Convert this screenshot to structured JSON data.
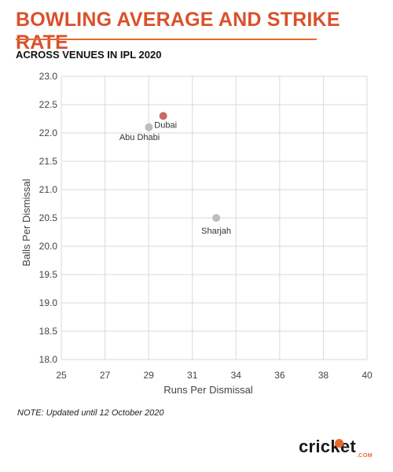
{
  "header": {
    "title": "BOWLING AVERAGE AND STRIKE RATE",
    "subtitle": "ACROSS VENUES IN IPL 2020"
  },
  "footer": {
    "note": "NOTE: Updated until 12 October 2020",
    "logo_text": "cricket",
    "logo_subtext": ".COM"
  },
  "colors": {
    "accent": "#d9512c",
    "highlight_point": "#c96a64",
    "default_point": "#bdbdbd",
    "grid": "#d9d9d9"
  },
  "chart_data": {
    "type": "scatter",
    "title": "BOWLING AVERAGE AND STRIKE RATE",
    "subtitle": "ACROSS VENUES IN IPL 2020",
    "xlabel": "Runs Per Dismissal",
    "ylabel": "Balls Per Dismissal",
    "xlim": [
      25,
      40
    ],
    "ylim": [
      18.0,
      23.0
    ],
    "xticks": [
      "25",
      "27",
      "29",
      "31",
      "34",
      "36",
      "38",
      "40"
    ],
    "yticks": [
      "18.0",
      "18.5",
      "19.0",
      "19.5",
      "20.0",
      "20.5",
      "21.0",
      "21.5",
      "22.0",
      "22.5",
      "23.0"
    ],
    "grid": true,
    "points": [
      {
        "label": "Dubai",
        "x": 30.0,
        "y": 22.3,
        "highlight": true
      },
      {
        "label": "Abu Dhabi",
        "x": 29.3,
        "y": 22.1,
        "highlight": false
      },
      {
        "label": "Sharjah",
        "x": 32.6,
        "y": 20.5,
        "highlight": false
      }
    ]
  }
}
